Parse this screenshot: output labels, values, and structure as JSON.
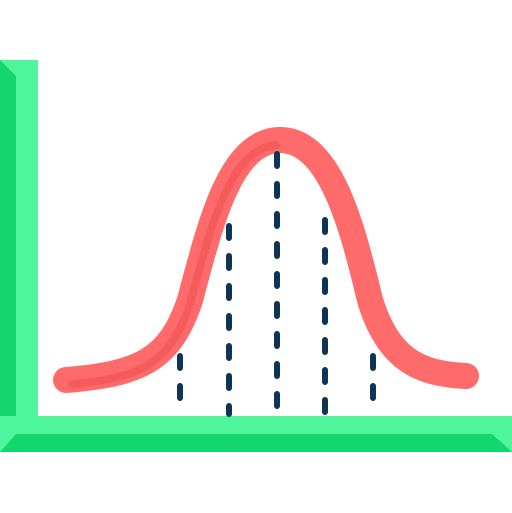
{
  "icon": {
    "name": "normal-distribution-icon",
    "colors": {
      "background": "#ffffff",
      "axis_light": "#4ef59b",
      "axis_dark": "#14d66e",
      "curve_outer": "#ff6b6b",
      "curve_inner": "#ef4f4f",
      "dash_lines": "#0f3556"
    },
    "dashed_guides": 5
  }
}
